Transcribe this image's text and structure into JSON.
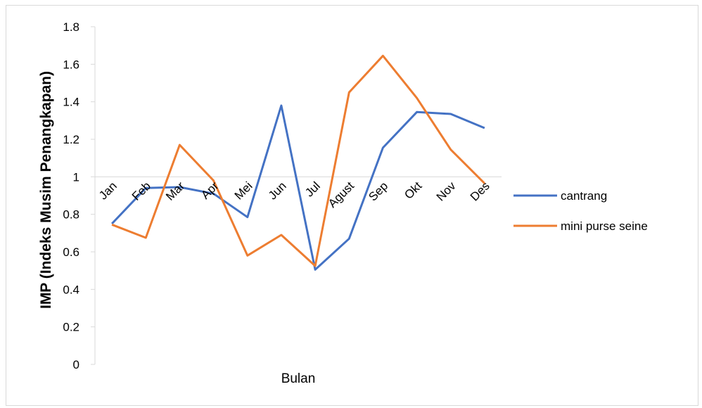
{
  "chart_data": {
    "type": "line",
    "title": "",
    "xlabel": "Bulan",
    "ylabel": "IMP (Indeks Musim Penangkapan)",
    "categories": [
      "Jan",
      "Feb",
      "Mar",
      "Apr",
      "Mei",
      "Jun",
      "Jul",
      "Agust",
      "Sep",
      "Okt",
      "Nov",
      "Des"
    ],
    "ylim": [
      0,
      1.8
    ],
    "yticks": [
      "0",
      "0.2",
      "0.4",
      "0.6",
      "0.8",
      "1",
      "1.2",
      "1.4",
      "1.6",
      "1.8"
    ],
    "x_axis_crosses_at": 1,
    "grid": false,
    "legend_position": "right",
    "series": [
      {
        "name": "cantrang",
        "color": "#4472C4",
        "values": [
          0.75,
          0.94,
          0.945,
          0.91,
          0.785,
          1.38,
          0.505,
          0.67,
          1.155,
          1.345,
          1.335,
          1.26
        ]
      },
      {
        "name": "mini purse seine",
        "color": "#ED7D31",
        "values": [
          0.745,
          0.675,
          1.17,
          0.98,
          0.58,
          0.69,
          0.525,
          1.45,
          1.645,
          1.42,
          1.145,
          0.965
        ]
      }
    ]
  }
}
